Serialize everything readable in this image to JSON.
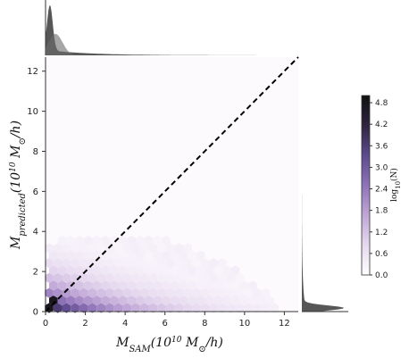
{
  "chart_data": {
    "type": "hexbin",
    "xlabel": {
      "main": "M",
      "sub": "SAM",
      "rest": "(10",
      "exp": "10",
      "unit": " M",
      "unit_sub": "⊙",
      "tail": "/h)"
    },
    "ylabel": {
      "main": "M",
      "sub": "predicted",
      "rest": "(10",
      "exp": "10",
      "unit": " M",
      "unit_sub": "⊙",
      "tail": "/h)"
    },
    "xlim": [
      0,
      12.7
    ],
    "ylim": [
      0,
      12.7
    ],
    "xticks": [
      "0",
      "2",
      "4",
      "6",
      "8",
      "10",
      "12"
    ],
    "yticks": [
      "0",
      "2",
      "4",
      "6",
      "8",
      "10",
      "12"
    ],
    "reference_line": {
      "style": "dashed",
      "color": "#000000",
      "points": [
        [
          0,
          0
        ],
        [
          12.7,
          12.7
        ]
      ]
    },
    "colorbar": {
      "label": "log10(N)",
      "range": [
        0.0,
        5.0
      ],
      "ticks": [
        "0.0",
        "0.6",
        "1.2",
        "1.8",
        "2.4",
        "3.0",
        "3.6",
        "4.2",
        "4.8"
      ],
      "colors": [
        "#ffffff",
        "#e6d9ef",
        "#bfa6d6",
        "#8f73b8",
        "#5d4a8e",
        "#2e2440",
        "#111111"
      ]
    },
    "marginal_x": {
      "type": "kde",
      "color": "#3a3a3a",
      "peak_at": 0.2
    },
    "marginal_y": {
      "type": "kde",
      "color": "#3a3a3a",
      "peak_at": 0.2
    }
  }
}
